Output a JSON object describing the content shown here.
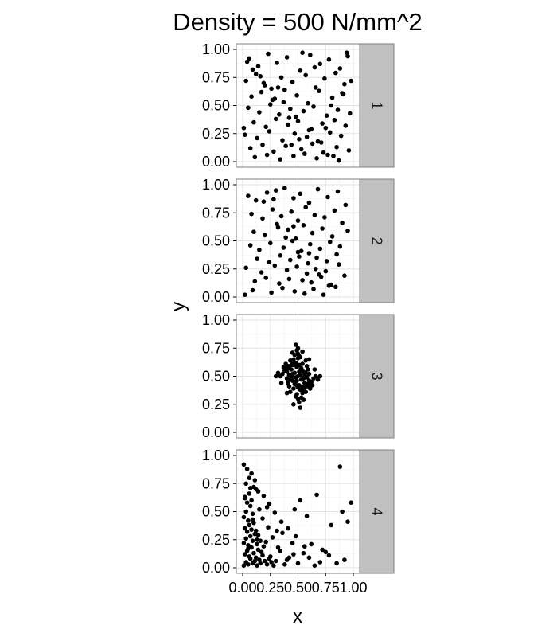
{
  "chart_data": {
    "type": "scatter",
    "title": "Density = 500 N/mm^2",
    "xlabel": "x",
    "ylabel": "y",
    "xlim": [
      0,
      1
    ],
    "ylim": [
      0,
      1
    ],
    "x_ticks": [
      "0.00",
      "0.25",
      "0.50",
      "0.75",
      "1.00"
    ],
    "y_ticks": [
      "0.00",
      "0.25",
      "0.50",
      "0.75",
      "1.00"
    ],
    "grid": true,
    "facets": [
      {
        "label": "1",
        "pattern": "uniform random",
        "points_x": [
          0.06,
          0.14,
          0.23,
          0.31,
          0.4,
          0.52,
          0.61,
          0.7,
          0.78,
          0.88,
          0.95,
          0.03,
          0.12,
          0.2,
          0.35,
          0.45,
          0.57,
          0.66,
          0.74,
          0.84,
          0.92,
          0.08,
          0.17,
          0.27,
          0.38,
          0.49,
          0.59,
          0.69,
          0.81,
          0.9,
          0.05,
          0.15,
          0.25,
          0.33,
          0.43,
          0.55,
          0.64,
          0.76,
          0.86,
          0.97,
          0.1,
          0.21,
          0.3,
          0.41,
          0.5,
          0.62,
          0.72,
          0.83,
          0.93,
          0.02,
          0.13,
          0.24,
          0.36,
          0.47,
          0.58,
          0.68,
          0.79,
          0.89,
          0.07,
          0.18,
          0.28,
          0.39,
          0.53,
          0.63,
          0.73,
          0.85,
          0.96,
          0.11,
          0.22,
          0.34,
          0.46,
          0.56,
          0.67,
          0.77,
          0.87,
          0.04,
          0.16,
          0.26,
          0.37,
          0.48,
          0.6,
          0.71,
          0.82,
          0.94,
          0.09,
          0.19,
          0.29,
          0.42,
          0.51,
          0.65,
          0.75,
          0.91,
          0.01,
          0.32,
          0.44,
          0.54,
          0.8,
          0.98
        ],
        "points_y": [
          0.92,
          0.85,
          0.96,
          0.88,
          0.93,
          0.81,
          0.95,
          0.87,
          0.91,
          0.83,
          0.94,
          0.72,
          0.78,
          0.68,
          0.75,
          0.71,
          0.77,
          0.66,
          0.74,
          0.79,
          0.69,
          0.58,
          0.62,
          0.55,
          0.64,
          0.59,
          0.52,
          0.63,
          0.57,
          0.61,
          0.48,
          0.44,
          0.51,
          0.42,
          0.47,
          0.45,
          0.49,
          0.41,
          0.46,
          0.43,
          0.35,
          0.31,
          0.38,
          0.33,
          0.36,
          0.29,
          0.34,
          0.37,
          0.32,
          0.24,
          0.21,
          0.27,
          0.19,
          0.25,
          0.22,
          0.18,
          0.26,
          0.23,
          0.12,
          0.15,
          0.09,
          0.14,
          0.11,
          0.16,
          0.08,
          0.13,
          0.1,
          0.04,
          0.06,
          0.02,
          0.05,
          0.07,
          0.03,
          0.06,
          0.01,
          0.89,
          0.76,
          0.65,
          0.53,
          0.4,
          0.28,
          0.17,
          0.05,
          0.97,
          0.82,
          0.7,
          0.56,
          0.39,
          0.2,
          0.84,
          0.3,
          0.6,
          0.3,
          0.66,
          0.15,
          0.97,
          0.5,
          0.72
        ]
      },
      {
        "label": "2",
        "pattern": "random, fewer near edges",
        "points_x": [
          0.05,
          0.12,
          0.22,
          0.3,
          0.38,
          0.46,
          0.52,
          0.6,
          0.68,
          0.77,
          0.86,
          0.93,
          0.08,
          0.18,
          0.27,
          0.35,
          0.44,
          0.5,
          0.57,
          0.65,
          0.74,
          0.83,
          0.9,
          0.1,
          0.2,
          0.32,
          0.41,
          0.48,
          0.55,
          0.63,
          0.72,
          0.81,
          0.95,
          0.07,
          0.15,
          0.25,
          0.37,
          0.45,
          0.53,
          0.61,
          0.7,
          0.79,
          0.88,
          0.13,
          0.24,
          0.34,
          0.43,
          0.51,
          0.59,
          0.67,
          0.76,
          0.85,
          0.03,
          0.17,
          0.29,
          0.4,
          0.49,
          0.58,
          0.66,
          0.75,
          0.87,
          0.11,
          0.21,
          0.33,
          0.42,
          0.54,
          0.62,
          0.71,
          0.8,
          0.92,
          0.09,
          0.26,
          0.36,
          0.47,
          0.56,
          0.64,
          0.73,
          0.84,
          0.02,
          0.19,
          0.31,
          0.39,
          0.5,
          0.69,
          0.78,
          0.28,
          0.46,
          0.6
        ],
        "points_y": [
          0.9,
          0.86,
          0.93,
          0.95,
          0.97,
          0.88,
          0.92,
          0.84,
          0.96,
          0.89,
          0.94,
          0.82,
          0.74,
          0.7,
          0.78,
          0.72,
          0.76,
          0.68,
          0.8,
          0.73,
          0.71,
          0.77,
          0.66,
          0.58,
          0.55,
          0.62,
          0.6,
          0.52,
          0.64,
          0.57,
          0.61,
          0.54,
          0.59,
          0.46,
          0.42,
          0.48,
          0.44,
          0.5,
          0.41,
          0.47,
          0.43,
          0.49,
          0.45,
          0.34,
          0.31,
          0.37,
          0.33,
          0.36,
          0.3,
          0.35,
          0.32,
          0.38,
          0.26,
          0.22,
          0.28,
          0.24,
          0.27,
          0.21,
          0.25,
          0.23,
          0.29,
          0.14,
          0.17,
          0.12,
          0.16,
          0.15,
          0.13,
          0.18,
          0.11,
          0.19,
          0.06,
          0.04,
          0.08,
          0.05,
          0.03,
          0.07,
          0.02,
          0.09,
          0.02,
          0.85,
          0.65,
          0.53,
          0.4,
          0.2,
          0.1,
          0.87,
          0.63,
          0.39
        ]
      },
      {
        "label": "3",
        "pattern": "clustered at center",
        "points_x": [
          0.5,
          0.47,
          0.53,
          0.44,
          0.56,
          0.49,
          0.51,
          0.42,
          0.58,
          0.46,
          0.54,
          0.4,
          0.6,
          0.48,
          0.52,
          0.45,
          0.55,
          0.43,
          0.57,
          0.5,
          0.38,
          0.62,
          0.47,
          0.53,
          0.41,
          0.59,
          0.49,
          0.51,
          0.44,
          0.56,
          0.36,
          0.64,
          0.5,
          0.46,
          0.54,
          0.39,
          0.61,
          0.48,
          0.52,
          0.43,
          0.57,
          0.45,
          0.55,
          0.34,
          0.66,
          0.5,
          0.47,
          0.53,
          0.42,
          0.58,
          0.49,
          0.51,
          0.4,
          0.6,
          0.37,
          0.63,
          0.46,
          0.54,
          0.48,
          0.52,
          0.44,
          0.56,
          0.41,
          0.59,
          0.5,
          0.45,
          0.55,
          0.32,
          0.68,
          0.43,
          0.57,
          0.49,
          0.51,
          0.47,
          0.53,
          0.39,
          0.61,
          0.46,
          0.54,
          0.42,
          0.58,
          0.5,
          0.35,
          0.65,
          0.48,
          0.52,
          0.44,
          0.56,
          0.4,
          0.6,
          0.3,
          0.7,
          0.51,
          0.49,
          0.45,
          0.55
        ],
        "points_y": [
          0.5,
          0.53,
          0.47,
          0.56,
          0.44,
          0.58,
          0.42,
          0.51,
          0.49,
          0.6,
          0.4,
          0.48,
          0.52,
          0.62,
          0.38,
          0.46,
          0.54,
          0.64,
          0.36,
          0.66,
          0.55,
          0.45,
          0.43,
          0.57,
          0.59,
          0.41,
          0.34,
          0.68,
          0.5,
          0.5,
          0.52,
          0.48,
          0.7,
          0.39,
          0.61,
          0.57,
          0.43,
          0.32,
          0.67,
          0.47,
          0.53,
          0.63,
          0.37,
          0.5,
          0.5,
          0.3,
          0.45,
          0.55,
          0.41,
          0.59,
          0.73,
          0.27,
          0.54,
          0.46,
          0.58,
          0.42,
          0.65,
          0.35,
          0.49,
          0.51,
          0.6,
          0.4,
          0.44,
          0.56,
          0.75,
          0.52,
          0.48,
          0.53,
          0.47,
          0.36,
          0.64,
          0.46,
          0.54,
          0.69,
          0.31,
          0.61,
          0.39,
          0.25,
          0.72,
          0.57,
          0.43,
          0.4,
          0.44,
          0.56,
          0.78,
          0.22,
          0.48,
          0.52,
          0.35,
          0.65,
          0.5,
          0.5,
          0.6,
          0.42,
          0.71,
          0.29
        ]
      },
      {
        "label": "4",
        "pattern": "concentrated near origin",
        "points_x": [
          0.01,
          0.03,
          0.05,
          0.07,
          0.09,
          0.11,
          0.13,
          0.15,
          0.02,
          0.04,
          0.06,
          0.08,
          0.1,
          0.12,
          0.14,
          0.16,
          0.18,
          0.2,
          0.22,
          0.24,
          0.26,
          0.28,
          0.01,
          0.03,
          0.05,
          0.07,
          0.09,
          0.11,
          0.13,
          0.02,
          0.04,
          0.06,
          0.08,
          0.1,
          0.12,
          0.14,
          0.17,
          0.19,
          0.21,
          0.25,
          0.3,
          0.34,
          0.38,
          0.42,
          0.46,
          0.01,
          0.03,
          0.05,
          0.07,
          0.09,
          0.02,
          0.04,
          0.06,
          0.08,
          0.12,
          0.15,
          0.18,
          0.23,
          0.27,
          0.32,
          0.36,
          0.4,
          0.45,
          0.5,
          0.55,
          0.6,
          0.65,
          0.7,
          0.78,
          0.85,
          0.92,
          0.03,
          0.06,
          0.1,
          0.14,
          0.19,
          0.24,
          0.29,
          0.35,
          0.41,
          0.48,
          0.52,
          0.58,
          0.62,
          0.72,
          0.8,
          0.9,
          0.98,
          0.01,
          0.04,
          0.08,
          0.11,
          0.16,
          0.22,
          0.05,
          0.09,
          0.13,
          0.02,
          0.07,
          0.31,
          0.47,
          0.56,
          0.67,
          0.75,
          0.88,
          0.95
        ],
        "points_y": [
          0.02,
          0.05,
          0.03,
          0.08,
          0.04,
          0.06,
          0.02,
          0.07,
          0.12,
          0.15,
          0.1,
          0.18,
          0.13,
          0.09,
          0.16,
          0.04,
          0.11,
          0.06,
          0.03,
          0.08,
          0.05,
          0.02,
          0.22,
          0.26,
          0.2,
          0.28,
          0.24,
          0.3,
          0.21,
          0.35,
          0.32,
          0.38,
          0.34,
          0.4,
          0.33,
          0.29,
          0.14,
          0.19,
          0.23,
          0.1,
          0.06,
          0.15,
          0.03,
          0.09,
          0.12,
          0.45,
          0.5,
          0.42,
          0.55,
          0.48,
          0.62,
          0.58,
          0.66,
          0.6,
          0.7,
          0.52,
          0.44,
          0.36,
          0.27,
          0.18,
          0.31,
          0.07,
          0.22,
          0.04,
          0.13,
          0.09,
          0.02,
          0.05,
          0.11,
          0.04,
          0.07,
          0.75,
          0.8,
          0.72,
          0.68,
          0.64,
          0.57,
          0.49,
          0.41,
          0.35,
          0.28,
          0.6,
          0.46,
          0.21,
          0.16,
          0.38,
          0.5,
          0.58,
          0.92,
          0.88,
          0.84,
          0.78,
          0.24,
          0.54,
          0.17,
          0.43,
          0.25,
          0.63,
          0.71,
          0.33,
          0.52,
          0.19,
          0.65,
          0.14,
          0.9,
          0.41
        ]
      }
    ]
  }
}
